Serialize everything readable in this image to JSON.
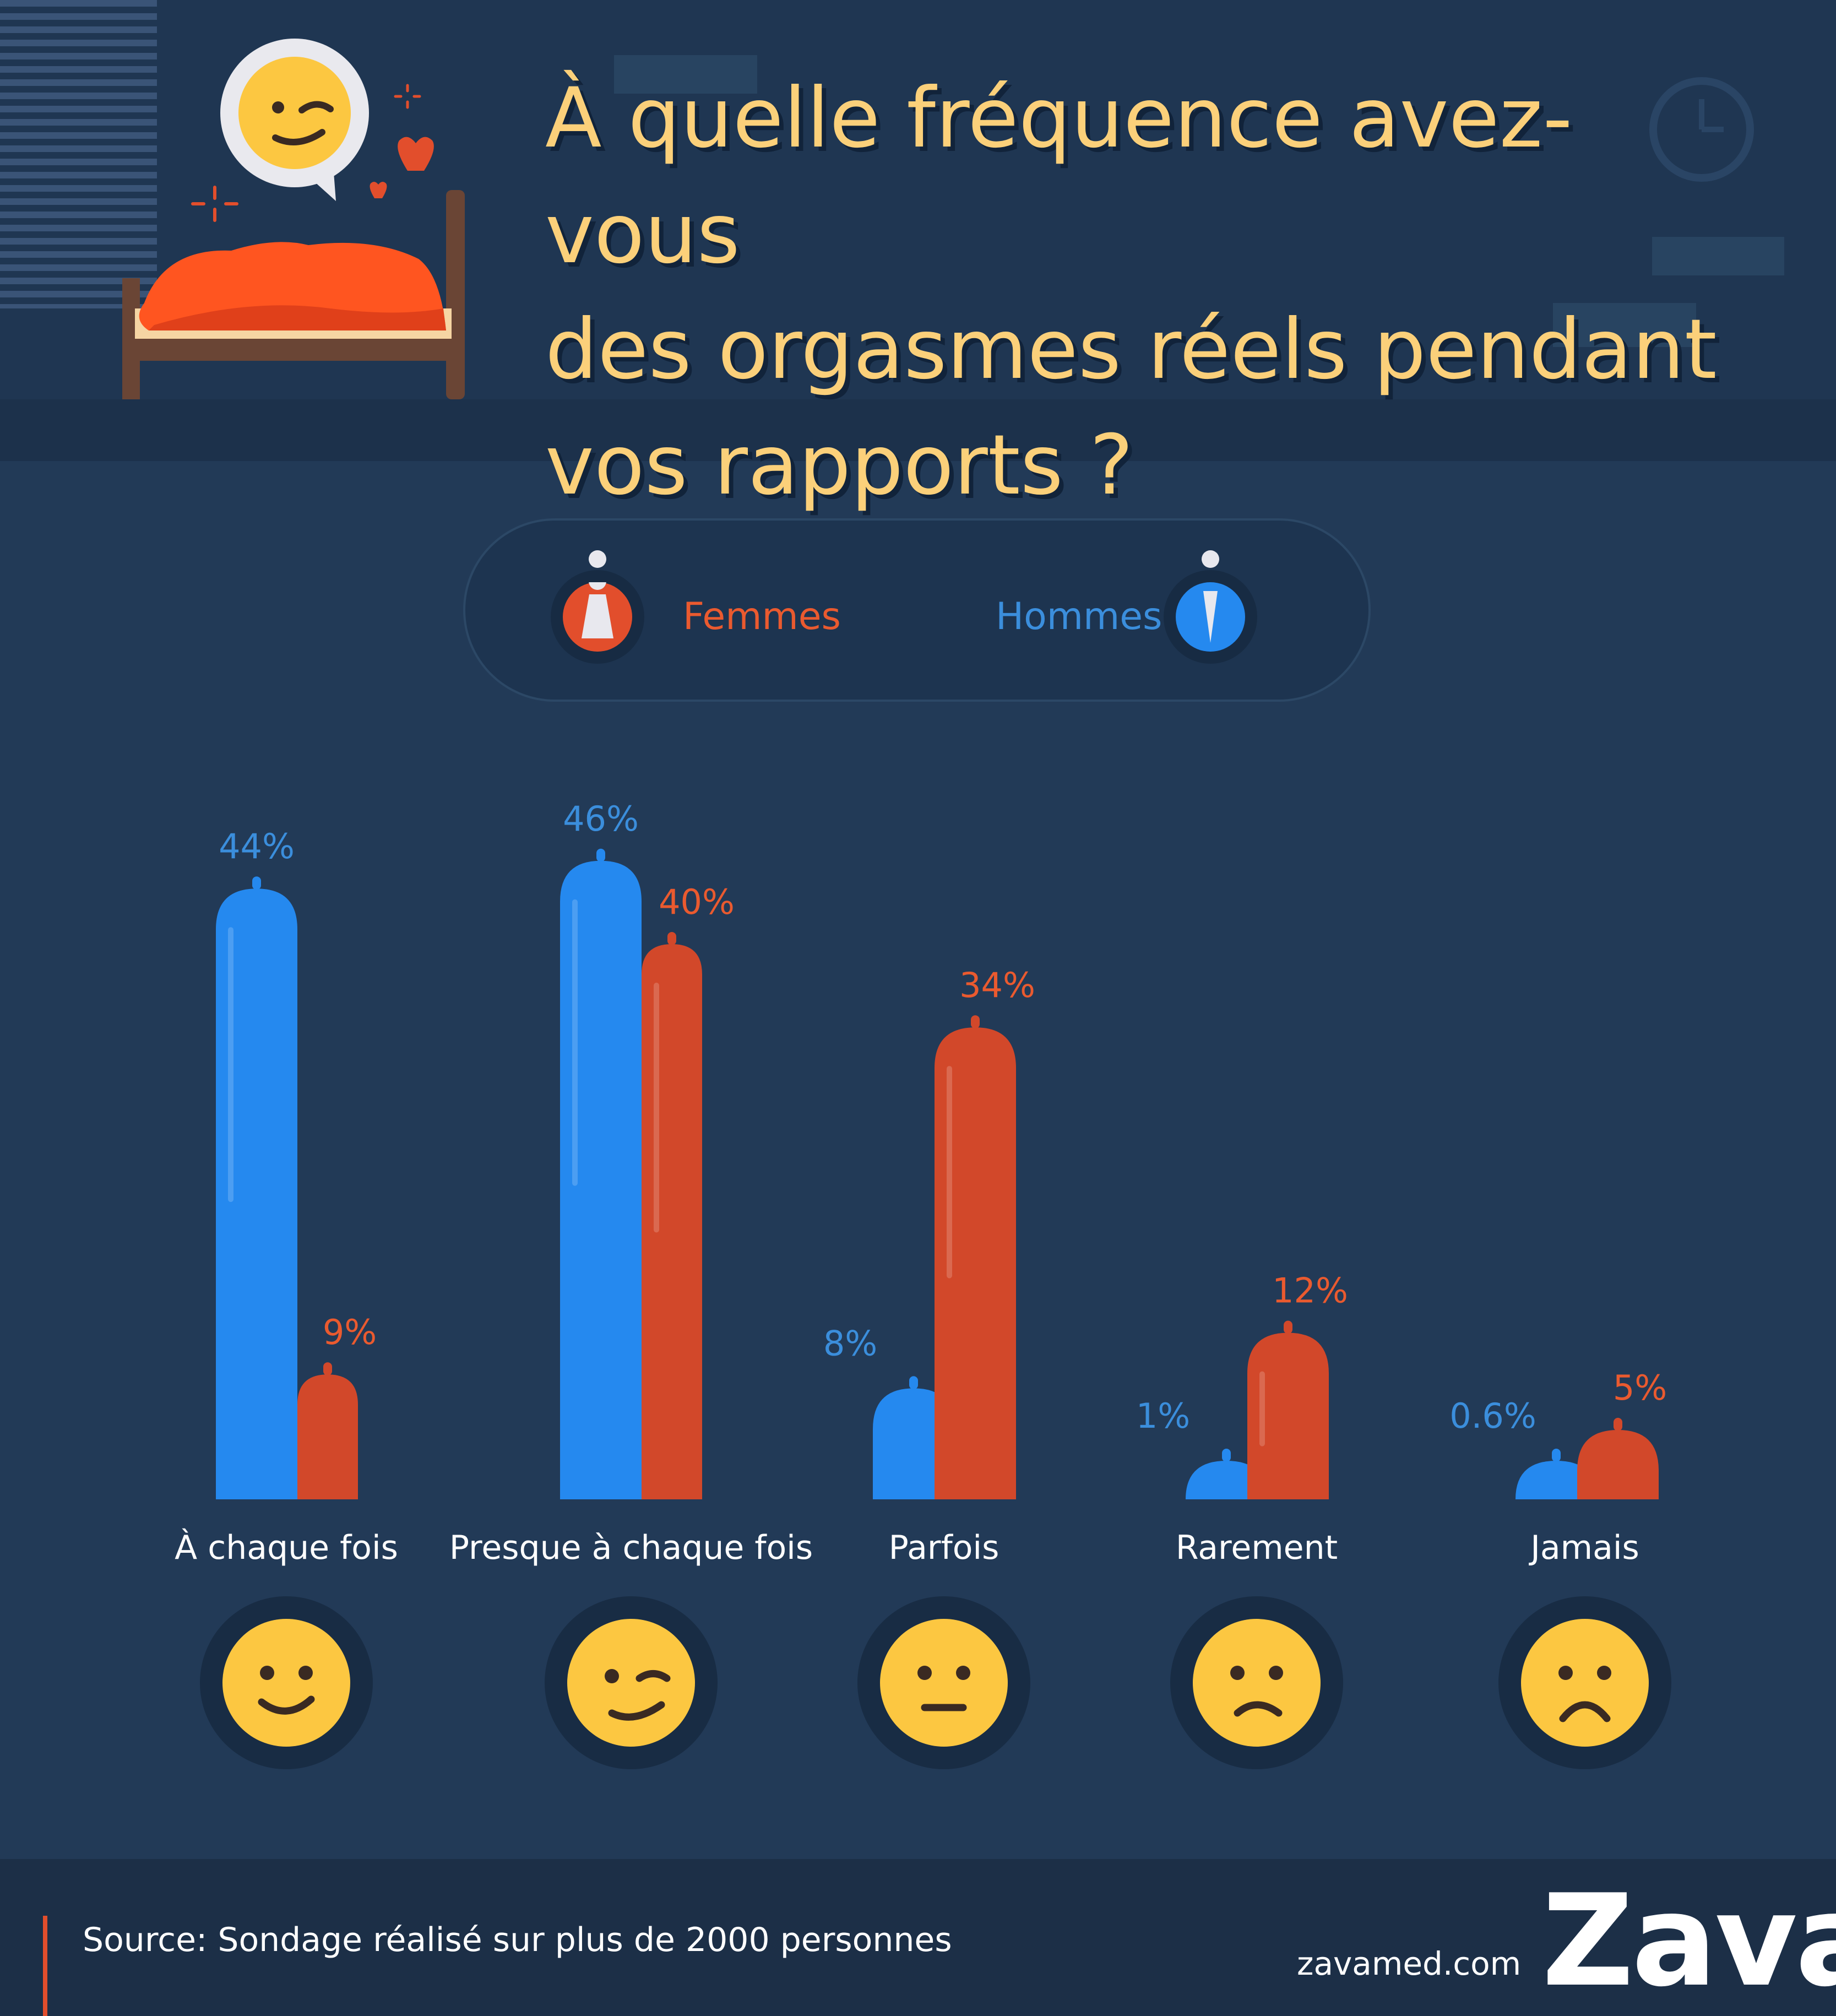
{
  "title": {
    "line1": "À quelle fréquence avez-vous",
    "line2": "des orgasmes réels pendant",
    "line3": "vos rapports ?"
  },
  "legend": {
    "women": "Femmes",
    "men": "Hommes"
  },
  "colors": {
    "women": "#d2482a",
    "men": "#2589ef",
    "women_label": "#ea5a2f",
    "men_label": "#3b8edc",
    "emoji": "#fcc741",
    "title": "#fbd07a"
  },
  "chart_data": {
    "type": "bar",
    "categories": [
      "À chaque fois",
      "Presque à chaque fois",
      "Parfois",
      "Rarement",
      "Jamais"
    ],
    "series": [
      {
        "name": "Hommes",
        "values": [
          44,
          46,
          8,
          1,
          0.6
        ],
        "labels": [
          "44%",
          "46%",
          "8%",
          "1%",
          "0.6%"
        ]
      },
      {
        "name": "Femmes",
        "values": [
          9,
          40,
          34,
          12,
          5
        ],
        "labels": [
          "9%",
          "40%",
          "34%",
          "12%",
          "5%"
        ]
      }
    ],
    "emojis": [
      "smile-icon",
      "smirk-icon",
      "neutral-face-icon",
      "slight-frown-icon",
      "frown-icon"
    ],
    "legend_position": "top-center",
    "grid": false
  },
  "footer": {
    "source": "Source: Sondage réalisé sur plus de 2000 personnes",
    "site": "zavamed.com",
    "brand": "Zava"
  }
}
